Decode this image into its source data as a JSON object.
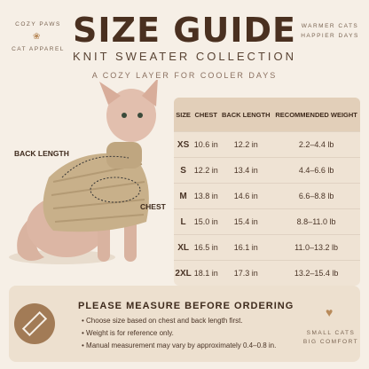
{
  "brand": {
    "name": "COZY PAWS",
    "sub": "CAT APPAREL"
  },
  "tagline": [
    "WARMER CATS",
    "HAPPIER DAYS"
  ],
  "header": {
    "title": "SIZE GUIDE",
    "subtitle": "KNIT SWEATER COLLECTION",
    "tagline": "A COZY LAYER FOR COOLER DAYS"
  },
  "diagram": {
    "back_length": "BACK LENGTH",
    "chest": "CHEST"
  },
  "table": {
    "headers": [
      "SIZE",
      "CHEST",
      "BACK LENGTH",
      "RECOMMENDED WEIGHT"
    ],
    "rows": [
      [
        "XS",
        "10.6 in",
        "12.2 in",
        "2.2–4.4 lb"
      ],
      [
        "S",
        "12.2 in",
        "13.4 in",
        "4.4–6.6 lb"
      ],
      [
        "M",
        "13.8 in",
        "14.6 in",
        "6.6–8.8 lb"
      ],
      [
        "L",
        "15.0 in",
        "15.4 in",
        "8.8–11.0 lb"
      ],
      [
        "XL",
        "16.5 in",
        "16.1 in",
        "11.0–13.2 lb"
      ],
      [
        "2XL",
        "18.1 in",
        "17.3 in",
        "13.2–15.4 lb"
      ]
    ]
  },
  "notes": {
    "title": "PLEASE MEASURE BEFORE ORDERING",
    "items": [
      "Choose size based on chest and back length first.",
      "Weight is for reference only.",
      "Manual measurement may vary by approximately 0.4–0.8 in."
    ]
  },
  "badge": [
    "SMALL CATS",
    "BIG COMFORT"
  ]
}
